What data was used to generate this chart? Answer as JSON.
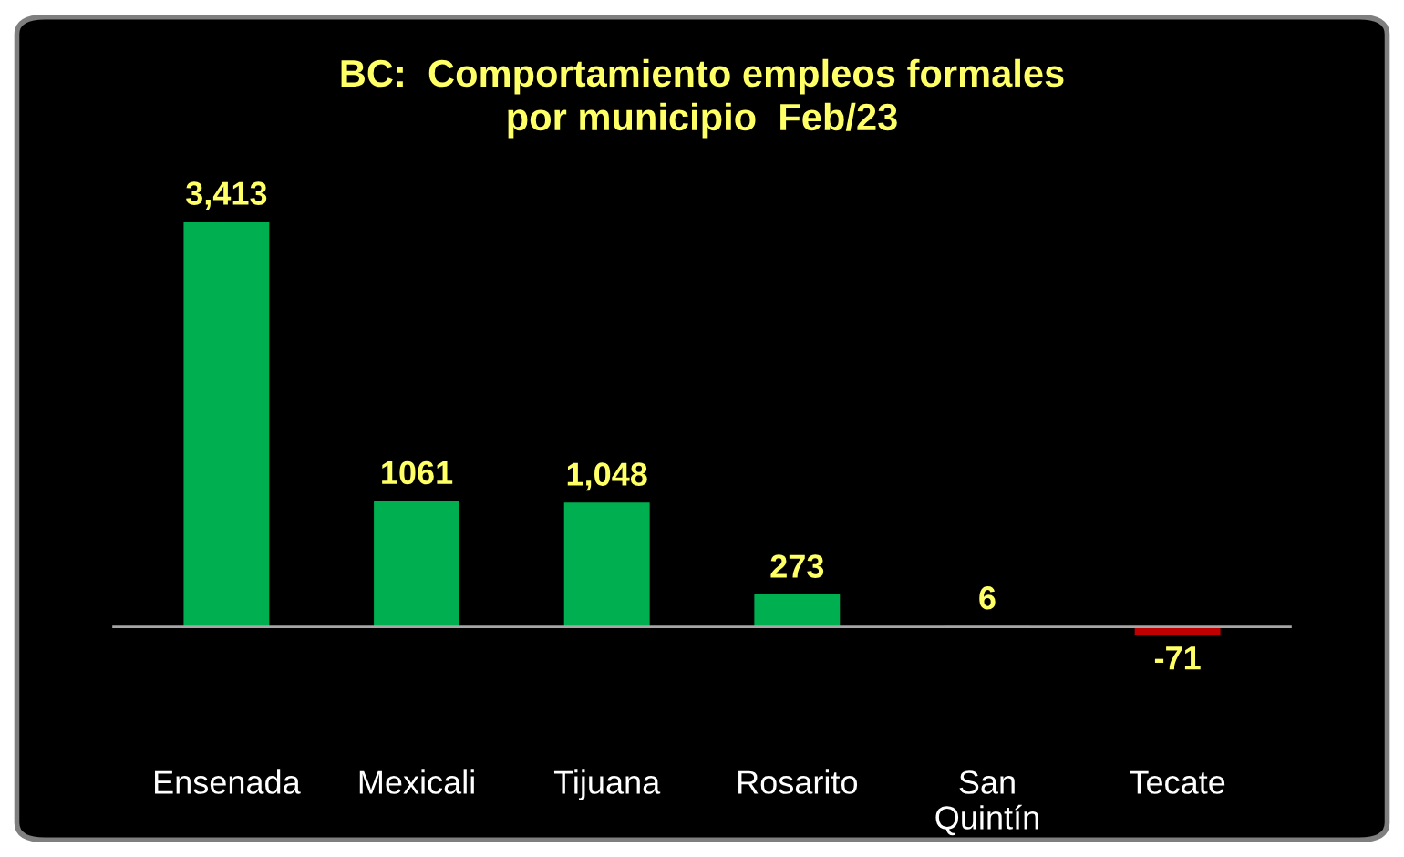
{
  "chart_data": {
    "type": "bar",
    "title": "BC:  Comportamiento empleos formales\npor municipio  Feb/23",
    "categories": [
      "Ensenada",
      "Mexicali",
      "Tijuana",
      "Rosarito",
      "San\nQuintín",
      "Tecate"
    ],
    "values": [
      3413,
      1061,
      1048,
      273,
      6,
      -71
    ],
    "colors": [
      "#00b050",
      "#00b050",
      "#00b050",
      "#00b050",
      "#00b050",
      "#c00000"
    ],
    "value_labels": [
      "3,413",
      "1061",
      "1,048",
      "273",
      "6",
      "-71"
    ],
    "tick_labels": "x",
    "grid": false,
    "legend": false
  }
}
